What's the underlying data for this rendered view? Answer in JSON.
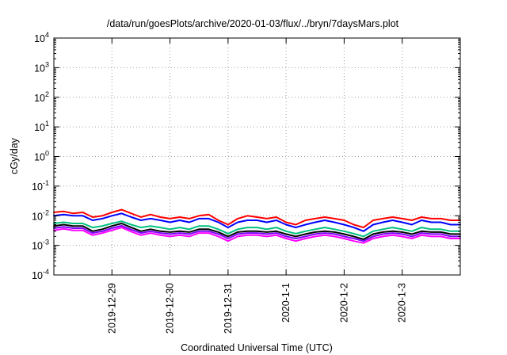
{
  "chart_data": {
    "type": "line",
    "title": "/data/run/goesPlots/archive/2020-01-03/flux/../bryn/7daysMars.plot",
    "xlabel": "Coordinated Universal Time (UTC)",
    "ylabel": "cGy/day",
    "yscale": "log",
    "ylim": [
      0.0001,
      10000
    ],
    "xlim": [
      "2019-12-28T00:00",
      "2020-01-04T00:00"
    ],
    "grid": true,
    "yticks": [
      {
        "base": "10",
        "exp": "-4",
        "value": 0.0001
      },
      {
        "base": "10",
        "exp": "-3",
        "value": 0.001
      },
      {
        "base": "10",
        "exp": "-2",
        "value": 0.01
      },
      {
        "base": "10",
        "exp": "-1",
        "value": 0.1
      },
      {
        "base": "10",
        "exp": "0",
        "value": 1
      },
      {
        "base": "10",
        "exp": "1",
        "value": 10
      },
      {
        "base": "10",
        "exp": "2",
        "value": 100
      },
      {
        "base": "10",
        "exp": "3",
        "value": 1000
      },
      {
        "base": "10",
        "exp": "4",
        "value": 10000
      }
    ],
    "xticks": [
      {
        "label": "2019-12-29",
        "value": "2019-12-29T00:00"
      },
      {
        "label": "2019-12-30",
        "value": "2019-12-30T00:00"
      },
      {
        "label": "2019-12-31",
        "value": "2019-12-31T00:00"
      },
      {
        "label": "2020-1-1",
        "value": "2020-01-01T00:00"
      },
      {
        "label": "2020-1-2",
        "value": "2020-01-02T00:00"
      },
      {
        "label": "2020-1-3",
        "value": "2020-01-03T00:00"
      }
    ],
    "x": [
      "2019-12-28T00:00",
      "2019-12-28T04:00",
      "2019-12-28T08:00",
      "2019-12-28T12:00",
      "2019-12-28T16:00",
      "2019-12-28T20:00",
      "2019-12-29T00:00",
      "2019-12-29T04:00",
      "2019-12-29T08:00",
      "2019-12-29T12:00",
      "2019-12-29T16:00",
      "2019-12-29T20:00",
      "2019-12-30T00:00",
      "2019-12-30T04:00",
      "2019-12-30T08:00",
      "2019-12-30T12:00",
      "2019-12-30T16:00",
      "2019-12-30T20:00",
      "2019-12-31T00:00",
      "2019-12-31T04:00",
      "2019-12-31T08:00",
      "2019-12-31T12:00",
      "2019-12-31T16:00",
      "2019-12-31T20:00",
      "2020-01-01T00:00",
      "2020-01-01T04:00",
      "2020-01-01T08:00",
      "2020-01-01T12:00",
      "2020-01-01T16:00",
      "2020-01-01T20:00",
      "2020-01-02T00:00",
      "2020-01-02T04:00",
      "2020-01-02T08:00",
      "2020-01-02T12:00",
      "2020-01-02T16:00",
      "2020-01-02T20:00",
      "2020-01-03T00:00",
      "2020-01-03T04:00",
      "2020-01-03T08:00",
      "2020-01-03T12:00",
      "2020-01-03T16:00",
      "2020-01-03T20:00",
      "2020-01-04T00:00"
    ],
    "series": [
      {
        "color": "#ff0000",
        "values": [
          0.013,
          0.014,
          0.012,
          0.013,
          0.009,
          0.01,
          0.013,
          0.016,
          0.012,
          0.009,
          0.011,
          0.009,
          0.008,
          0.009,
          0.008,
          0.01,
          0.011,
          0.007,
          0.005,
          0.008,
          0.01,
          0.009,
          0.008,
          0.009,
          0.006,
          0.005,
          0.007,
          0.008,
          0.009,
          0.008,
          0.007,
          0.005,
          0.004,
          0.007,
          0.008,
          0.009,
          0.008,
          0.007,
          0.009,
          0.008,
          0.008,
          0.007,
          0.007
        ]
      },
      {
        "color": "#0000ff",
        "values": [
          0.01,
          0.011,
          0.01,
          0.01,
          0.007,
          0.008,
          0.01,
          0.012,
          0.009,
          0.007,
          0.008,
          0.007,
          0.006,
          0.007,
          0.006,
          0.008,
          0.008,
          0.006,
          0.004,
          0.006,
          0.007,
          0.007,
          0.006,
          0.007,
          0.005,
          0.004,
          0.005,
          0.006,
          0.007,
          0.006,
          0.005,
          0.004,
          0.003,
          0.005,
          0.006,
          0.007,
          0.006,
          0.005,
          0.007,
          0.006,
          0.006,
          0.005,
          0.005
        ]
      },
      {
        "color": "#00c080",
        "values": [
          0.0055,
          0.006,
          0.0055,
          0.0055,
          0.004,
          0.0045,
          0.0055,
          0.0065,
          0.005,
          0.004,
          0.0045,
          0.004,
          0.0035,
          0.004,
          0.0035,
          0.0045,
          0.0045,
          0.0035,
          0.0025,
          0.0035,
          0.004,
          0.004,
          0.0035,
          0.004,
          0.003,
          0.0025,
          0.003,
          0.0035,
          0.004,
          0.0035,
          0.003,
          0.0025,
          0.002,
          0.003,
          0.0035,
          0.004,
          0.0035,
          0.003,
          0.004,
          0.0035,
          0.0035,
          0.003,
          0.003
        ]
      },
      {
        "color": "#000000",
        "values": [
          0.0045,
          0.005,
          0.0045,
          0.0045,
          0.003,
          0.0035,
          0.0045,
          0.0055,
          0.004,
          0.003,
          0.0035,
          0.003,
          0.0028,
          0.003,
          0.0028,
          0.0035,
          0.0035,
          0.0028,
          0.002,
          0.0028,
          0.003,
          0.003,
          0.0028,
          0.003,
          0.0024,
          0.002,
          0.0024,
          0.0028,
          0.003,
          0.0028,
          0.0024,
          0.002,
          0.0016,
          0.0024,
          0.0028,
          0.003,
          0.0028,
          0.0024,
          0.003,
          0.0028,
          0.0028,
          0.0024,
          0.0024
        ]
      },
      {
        "color": "#8000ff",
        "values": [
          0.0038,
          0.0042,
          0.0038,
          0.0038,
          0.0026,
          0.003,
          0.0038,
          0.0046,
          0.0034,
          0.0026,
          0.003,
          0.0026,
          0.0024,
          0.0026,
          0.0024,
          0.003,
          0.003,
          0.0024,
          0.0017,
          0.0024,
          0.0026,
          0.0026,
          0.0024,
          0.0026,
          0.002,
          0.0017,
          0.002,
          0.0024,
          0.0026,
          0.0024,
          0.002,
          0.0017,
          0.0014,
          0.002,
          0.0024,
          0.0026,
          0.0024,
          0.002,
          0.0026,
          0.0024,
          0.0024,
          0.002,
          0.002
        ]
      },
      {
        "color": "#ff00ff",
        "values": [
          0.0032,
          0.0036,
          0.0032,
          0.0032,
          0.0022,
          0.0026,
          0.0032,
          0.004,
          0.0029,
          0.0022,
          0.0026,
          0.0022,
          0.002,
          0.0022,
          0.002,
          0.0026,
          0.0026,
          0.002,
          0.0014,
          0.002,
          0.0022,
          0.0022,
          0.002,
          0.0022,
          0.0017,
          0.0014,
          0.0017,
          0.002,
          0.0022,
          0.002,
          0.0017,
          0.0014,
          0.0012,
          0.0017,
          0.002,
          0.0022,
          0.002,
          0.0017,
          0.0022,
          0.002,
          0.002,
          0.0017,
          0.0017
        ]
      }
    ]
  }
}
